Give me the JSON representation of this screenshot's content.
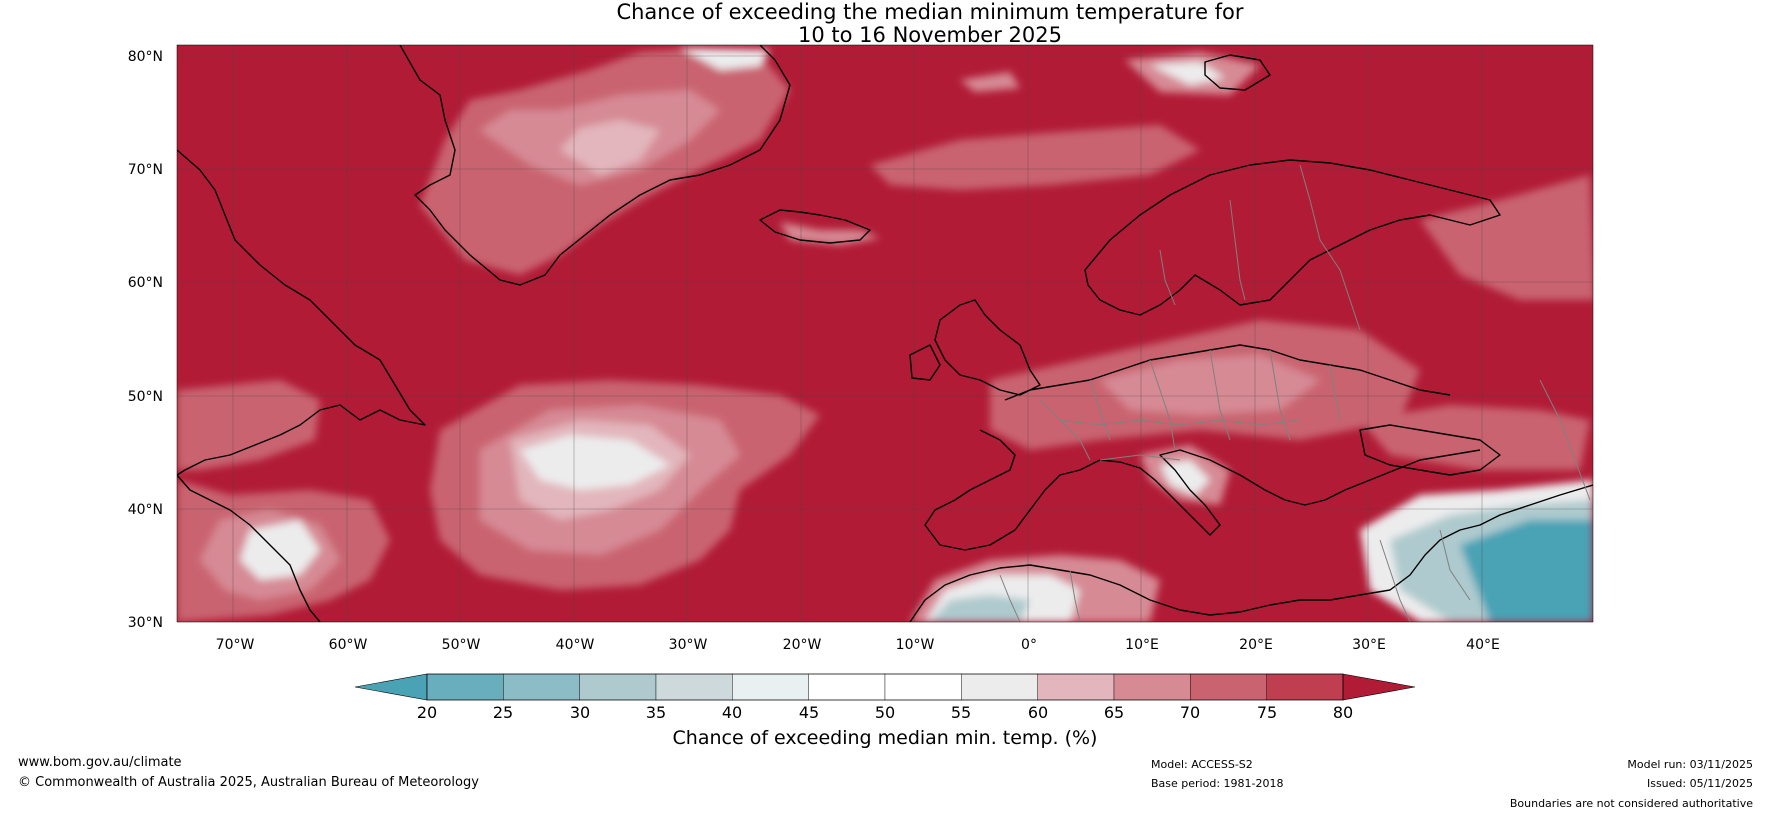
{
  "title": {
    "line1": "Chance of exceeding the median minimum temperature for",
    "line2": "10 to 16 November 2025"
  },
  "map": {
    "lat_labels": [
      "80°N",
      "70°N",
      "60°N",
      "50°N",
      "40°N",
      "30°N"
    ],
    "lon_labels": [
      "70°W",
      "60°W",
      "50°W",
      "40°W",
      "30°W",
      "20°W",
      "10°W",
      "0°",
      "10°E",
      "20°E",
      "30°E",
      "40°E"
    ],
    "dominant_color": "#b11b36",
    "coastline_color": "#000000",
    "border_color": "#808080"
  },
  "colorbar": {
    "labels": [
      "20",
      "25",
      "30",
      "35",
      "40",
      "45",
      "50",
      "55",
      "60",
      "65",
      "70",
      "75",
      "80"
    ],
    "colors": [
      "#4aa3b5",
      "#69aebd",
      "#8cbcc6",
      "#aecace",
      "#ced9db",
      "#e9f0f1",
      "#ffffff",
      "#ffffff",
      "#ececed",
      "#e2b6bc",
      "#d68a94",
      "#c9636f",
      "#bf3f51",
      "#b11b36"
    ],
    "title": "Chance of exceeding median min. temp. (%)"
  },
  "footer": {
    "website": "www.bom.gov.au/climate",
    "copyright": "© Commonwealth of Australia 2025, Australian Bureau of Meteorology",
    "model": "Model: ACCESS-S2",
    "base_period": "Base period: 1981-2018",
    "model_run": "Model run: 03/11/2025",
    "issued": "Issued: 05/11/2025",
    "disclaimer": "Boundaries are not considered authoritative"
  }
}
